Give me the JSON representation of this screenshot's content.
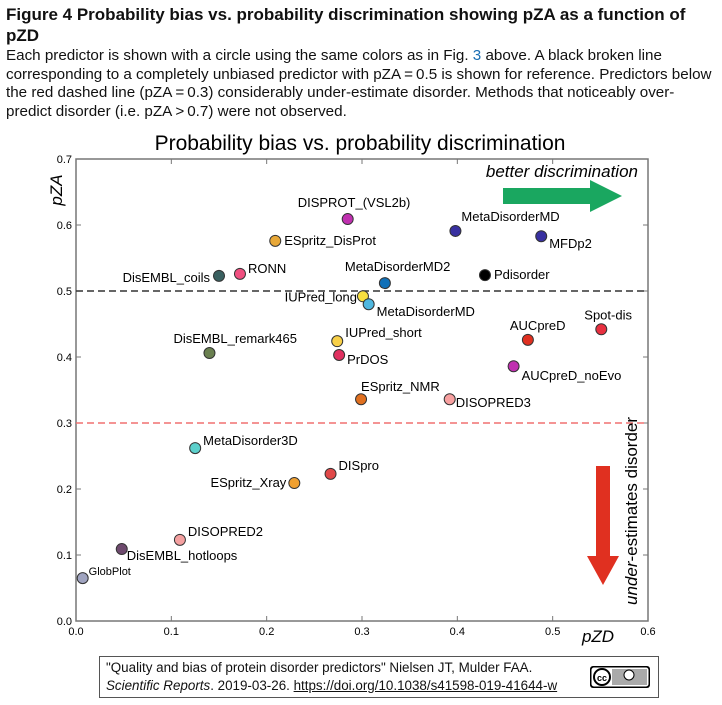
{
  "figure": {
    "title": "Figure 4 Probability bias vs. probability discrimination showing pZA as a function of pZD",
    "caption_parts": [
      "Each predictor is shown with a circle using the same colors as in Fig. ",
      "3",
      " above. A black broken line corresponding to a completely unbiased predictor with pZA = 0.5 is shown for reference. Predictors below the red dashed line (pZA = 0.3) considerably under-estimate disorder. Methods that noticeably over-predict disorder (i.e. pZA > 0.7) were not observed."
    ]
  },
  "citation": {
    "line1": "\"Quality and bias of protein disorder predictors\" Nielsen JT, Mulder FAA.",
    "journal": "Scientific Reports",
    "date": ". 2019-03-26. ",
    "doi": "https://doi.org/10.1038/s41598-019-41644-w",
    "license_badge": "cc-by-icon"
  },
  "chart_data": {
    "type": "scatter",
    "title": "Probability bias vs. probability discrimination",
    "xlabel": "pZD",
    "ylabel": "pZA",
    "xlim": [
      0,
      0.6
    ],
    "ylim": [
      0,
      0.7
    ],
    "xticks": [
      "0.0",
      "0.1",
      "0.2",
      "0.3",
      "0.4",
      "0.5",
      "0.6"
    ],
    "yticks": [
      "0.0",
      "0.1",
      "0.2",
      "0.3",
      "0.4",
      "0.5",
      "0.6",
      "0.7"
    ],
    "grid": false,
    "reference_lines": [
      {
        "y": 0.5,
        "color": "#333333",
        "style": "dashed"
      },
      {
        "y": 0.3,
        "color": "#f07070",
        "style": "dashed"
      }
    ],
    "annotations": {
      "top": "better discrimination",
      "top_arrow_color": "#1aa760",
      "right_prefix": "under",
      "right_rest": "-estimates disorder",
      "right_arrow_color": "#e03020"
    },
    "points": [
      {
        "name": "GlobPlot",
        "x": 0.007,
        "y": 0.065,
        "color": "#a0a4c0"
      },
      {
        "name": "DisEMBL_hotloops",
        "x": 0.048,
        "y": 0.109,
        "color": "#6e4a6e"
      },
      {
        "name": "DISOPRED2",
        "x": 0.109,
        "y": 0.123,
        "color": "#f4a0a0"
      },
      {
        "name": "MetaDisorder3D",
        "x": 0.125,
        "y": 0.262,
        "color": "#5cd0cc"
      },
      {
        "name": "ESpritz_Xray",
        "x": 0.229,
        "y": 0.209,
        "color": "#f0a030"
      },
      {
        "name": "DISpro",
        "x": 0.267,
        "y": 0.223,
        "color": "#e04848"
      },
      {
        "name": "ESpritz_NMR",
        "x": 0.299,
        "y": 0.336,
        "color": "#e07020"
      },
      {
        "name": "DISOPRED3",
        "x": 0.392,
        "y": 0.336,
        "color": "#f8a0a0"
      },
      {
        "name": "PrDOS",
        "x": 0.276,
        "y": 0.403,
        "color": "#e03060"
      },
      {
        "name": "IUPred_short",
        "x": 0.274,
        "y": 0.424,
        "color": "#f8d048"
      },
      {
        "name": "DisEMBL_remark465",
        "x": 0.14,
        "y": 0.406,
        "color": "#6a8050"
      },
      {
        "name": "DisEMBL_coils",
        "x": 0.15,
        "y": 0.523,
        "color": "#3a6060"
      },
      {
        "name": "RONN",
        "x": 0.172,
        "y": 0.526,
        "color": "#f05080"
      },
      {
        "name": "ESpritz_DisProt",
        "x": 0.209,
        "y": 0.576,
        "color": "#e8a838"
      },
      {
        "name": "DISPROT_(VSL2b)",
        "x": 0.285,
        "y": 0.609,
        "color": "#c030b0"
      },
      {
        "name": "IUPred_long",
        "x": 0.301,
        "y": 0.492,
        "color": "#f8e040"
      },
      {
        "name": "MetaDisorderMD",
        "x": 0.307,
        "y": 0.48,
        "color": "#50b8e0"
      },
      {
        "name": "MetaDisorderMD2",
        "x": 0.324,
        "y": 0.512,
        "color": "#1070b8"
      },
      {
        "name": "MetaDisorderMD",
        "x": 0.398,
        "y": 0.591,
        "color": "#3830a0"
      },
      {
        "name": "Pdisorder",
        "x": 0.429,
        "y": 0.524,
        "color": "#000000"
      },
      {
        "name": "MFDp2",
        "x": 0.488,
        "y": 0.583,
        "color": "#3830a0"
      },
      {
        "name": "AUCpreD",
        "x": 0.474,
        "y": 0.426,
        "color": "#e03020"
      },
      {
        "name": "AUCpreD_noEvo",
        "x": 0.459,
        "y": 0.386,
        "color": "#c030b0"
      },
      {
        "name": "Spot-dis",
        "x": 0.551,
        "y": 0.442,
        "color": "#e83040"
      }
    ]
  }
}
